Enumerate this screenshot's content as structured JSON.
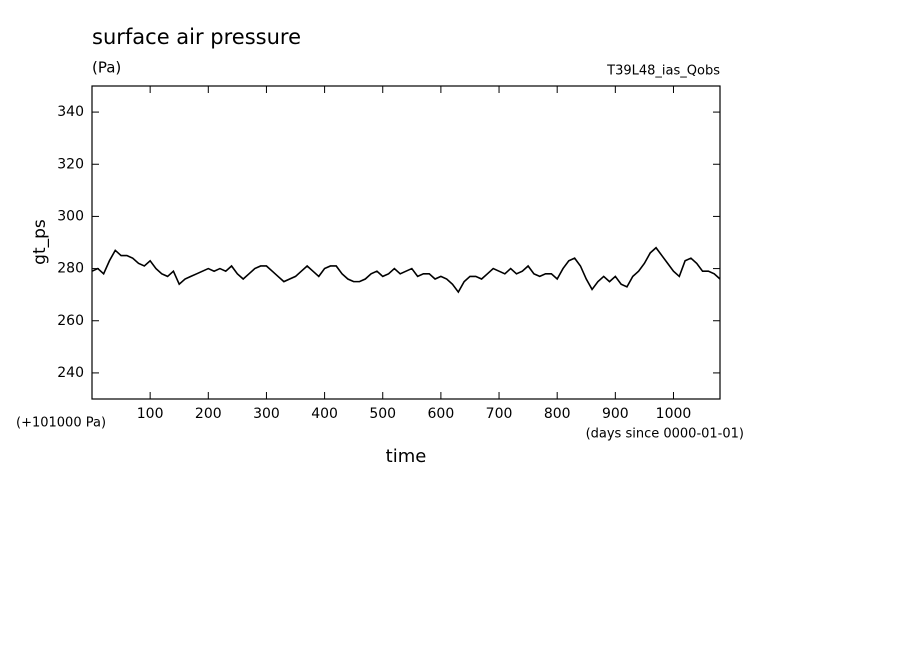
{
  "chart_data": {
    "type": "line",
    "title": "surface air pressure",
    "units": "(Pa)",
    "experiment": "T39L48_ias_Qobs",
    "ylabel": "gt_ps",
    "offset_label": "(+101000 Pa)",
    "xlabel": "time",
    "xunits": "(days since 0000-01-01)",
    "color": "#000000",
    "x": [
      0,
      10,
      20,
      30,
      40,
      50,
      60,
      70,
      80,
      90,
      100,
      110,
      120,
      130,
      140,
      150,
      160,
      170,
      180,
      190,
      200,
      210,
      220,
      230,
      240,
      250,
      260,
      270,
      280,
      290,
      300,
      310,
      320,
      330,
      340,
      350,
      360,
      370,
      380,
      390,
      400,
      410,
      420,
      430,
      440,
      450,
      460,
      470,
      480,
      490,
      500,
      510,
      520,
      530,
      540,
      550,
      560,
      570,
      580,
      590,
      600,
      610,
      620,
      630,
      640,
      650,
      660,
      670,
      680,
      690,
      700,
      710,
      720,
      730,
      740,
      750,
      760,
      770,
      780,
      790,
      800,
      810,
      820,
      830,
      840,
      850,
      860,
      870,
      880,
      890,
      900,
      910,
      920,
      930,
      940,
      950,
      960,
      970,
      980,
      990,
      1000,
      1010,
      1020,
      1030,
      1040,
      1050,
      1060,
      1070,
      1080
    ],
    "values": [
      279,
      280,
      278,
      283,
      287,
      285,
      285,
      284,
      282,
      281,
      283,
      280,
      278,
      277,
      279,
      274,
      276,
      277,
      278,
      279,
      280,
      279,
      280,
      279,
      281,
      278,
      276,
      278,
      280,
      281,
      281,
      279,
      277,
      275,
      276,
      277,
      279,
      281,
      279,
      277,
      280,
      281,
      281,
      278,
      276,
      275,
      275,
      276,
      278,
      279,
      277,
      278,
      280,
      278,
      279,
      280,
      277,
      278,
      278,
      276,
      277,
      276,
      274,
      271,
      275,
      277,
      277,
      276,
      278,
      280,
      279,
      278,
      280,
      278,
      279,
      281,
      278,
      277,
      278,
      278,
      276,
      280,
      283,
      284,
      281,
      276,
      272,
      275,
      277,
      275,
      277,
      274,
      273,
      277,
      279,
      282,
      286,
      288,
      285,
      282,
      279,
      277,
      283,
      284,
      282,
      279,
      279,
      278,
      276
    ],
    "xlim": [
      0,
      1080
    ],
    "ylim": [
      230,
      350
    ],
    "xticks": [
      100,
      200,
      300,
      400,
      500,
      600,
      700,
      800,
      900,
      1000
    ],
    "yticks": [
      240,
      260,
      280,
      300,
      320,
      340
    ]
  }
}
